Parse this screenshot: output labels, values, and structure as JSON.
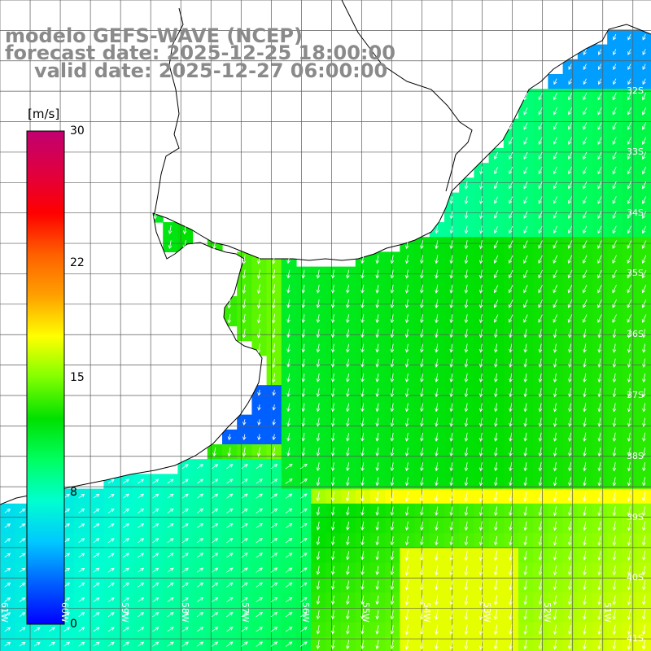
{
  "title": {
    "line1": "modelo GEFS-WAVE (NCEP)",
    "line2": "forecast date: 2025-12-25 18:00:00",
    "line3": "valid date: 2025-12-27 06:00:00"
  },
  "colorbar": {
    "unit": "[m/s]",
    "ticks": [
      "30",
      "22",
      "15",
      "8",
      "0"
    ],
    "tick_values": [
      30,
      22,
      15,
      8,
      0
    ],
    "min": 0,
    "max": 30,
    "colors": [
      "#0000ff",
      "#0060ff",
      "#00c8ff",
      "#00ffd0",
      "#00ff60",
      "#00e000",
      "#80ff00",
      "#ffff00",
      "#ffa000",
      "#ff6000",
      "#ff0000",
      "#e00040",
      "#c00070"
    ]
  },
  "lat_labels": [
    "32S",
    "33S",
    "34S",
    "35S",
    "36S",
    "37S",
    "38S",
    "39S",
    "40S",
    "41S"
  ],
  "lat_values": [
    -32,
    -33,
    -34,
    -35,
    -36,
    -37,
    -38,
    -39,
    -40,
    -41
  ],
  "lon_labels": [
    "61W",
    "60W",
    "59W",
    "58W",
    "57W",
    "56W",
    "55W",
    "54W",
    "53W",
    "52W",
    "51W"
  ],
  "lon_values": [
    -61,
    -60,
    -59,
    -58,
    -57,
    -56,
    -55,
    -54,
    -53,
    -52,
    -51
  ],
  "map_extent": {
    "lon_min": -61.0,
    "lon_max": -50.2,
    "lat_min": -41.2,
    "lat_max": -30.5
  },
  "colors": {
    "land": "#ffffff",
    "coast": "#000000",
    "grid": "#5a5a5a",
    "arrow": "#ffffff",
    "title": "#8a8a8a"
  }
}
